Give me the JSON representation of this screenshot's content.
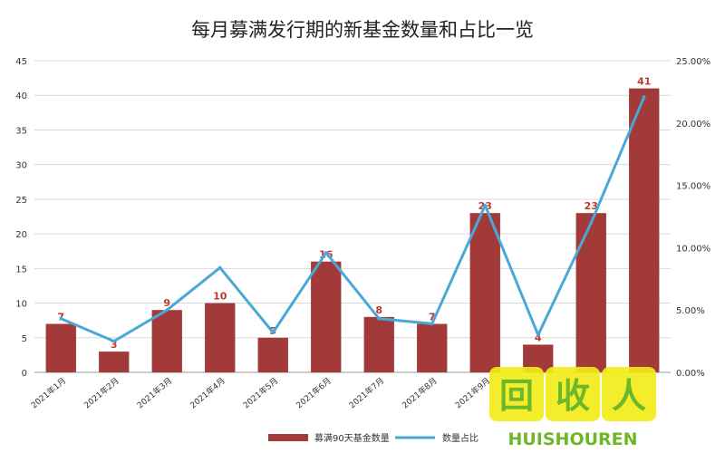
{
  "chart_data": {
    "type": "bar",
    "title": "每月募满发行期的新基金数量和占比一览",
    "categories": [
      "2021年1月",
      "2021年2月",
      "2021年3月",
      "2021年4月",
      "2021年5月",
      "2021年6月",
      "2021年7月",
      "2021年8月",
      "2021年9月",
      "",
      "",
      ""
    ],
    "series": [
      {
        "name": "募满90天基金数量",
        "type": "bar",
        "axis": "left",
        "color": "#a33a3a",
        "values": [
          7,
          3,
          9,
          10,
          5,
          16,
          8,
          7,
          23,
          4,
          23,
          41
        ]
      },
      {
        "name": "数量占比",
        "type": "line",
        "axis": "right",
        "color": "#4aa8d8",
        "values": [
          0.043,
          0.025,
          0.05,
          0.084,
          0.032,
          0.096,
          0.043,
          0.039,
          0.134,
          0.03,
          0.12,
          0.221
        ]
      }
    ],
    "data_labels": [
      "7",
      "3",
      "9",
      "10",
      "5",
      "16",
      "8",
      "7",
      "23",
      "4",
      "23",
      "41"
    ],
    "ylim_left": [
      0,
      45
    ],
    "yticks_left": [
      "0",
      "5",
      "10",
      "15",
      "20",
      "25",
      "30",
      "35",
      "40",
      "45"
    ],
    "ylim_right": [
      0,
      0.25
    ],
    "yticks_right": [
      "0.00%",
      "5.00%",
      "10.00%",
      "15.00%",
      "20.00%",
      "25.00%"
    ],
    "grid": true,
    "legend_position": "bottom"
  },
  "watermark": {
    "text": "HUISHOUREN",
    "logo_chars": "回收人"
  }
}
